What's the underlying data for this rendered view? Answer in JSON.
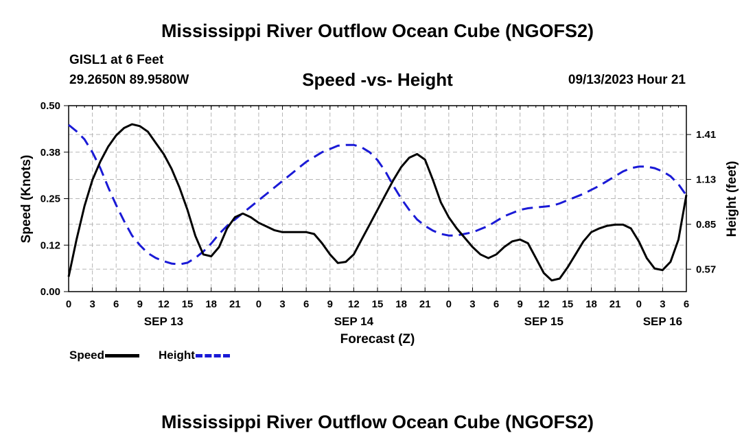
{
  "header": {
    "title": "Mississippi River Outflow Ocean Cube (NGOFS2)",
    "station": "GISL1 at 6 Feet",
    "coordinates": "29.2650N  89.9580W",
    "chart_subtitle": "Speed -vs- Height",
    "datetime": "09/13/2023 Hour 21"
  },
  "footer": {
    "title": "Mississippi River Outflow Ocean Cube (NGOFS2)"
  },
  "legend": {
    "speed_label": "Speed",
    "height_label": "Height",
    "speed_color": "#000000",
    "height_color": "#1a1ad6"
  },
  "chart_data": {
    "type": "line",
    "title": "Speed -vs- Height",
    "xlabel": "Forecast (Z)",
    "ylabel_left": "Speed (Knots)",
    "ylabel_right": "Height (feet)",
    "x_range_hours": [
      0,
      78
    ],
    "x_tick_step_hours": 3,
    "x_tick_labels": [
      "0",
      "3",
      "6",
      "9",
      "12",
      "15",
      "18",
      "21",
      "0",
      "3",
      "6",
      "9",
      "12",
      "15",
      "18",
      "21",
      "0",
      "3",
      "6",
      "9",
      "12",
      "15",
      "18",
      "21",
      "0",
      "3",
      "6"
    ],
    "date_labels": [
      {
        "hour": 12,
        "label": "SEP 13"
      },
      {
        "hour": 36,
        "label": "SEP 14"
      },
      {
        "hour": 60,
        "label": "SEP 15"
      },
      {
        "hour": 75,
        "label": "SEP 16"
      }
    ],
    "y_left": {
      "range": [
        0.0,
        0.5
      ],
      "ticks": [
        0.0,
        0.125,
        0.25,
        0.375,
        0.5
      ],
      "tick_labels": [
        "0.00",
        "0.12",
        "0.25",
        "0.38",
        "0.50"
      ]
    },
    "y_right": {
      "range": [
        0.43,
        1.59
      ],
      "ticks": [
        0.57,
        0.85,
        1.13,
        1.41
      ],
      "tick_labels": [
        "0.57",
        "0.85",
        "1.13",
        "1.41"
      ]
    },
    "grid": true,
    "series": [
      {
        "name": "Speed",
        "axis": "left",
        "style": "solid",
        "color": "#000000",
        "points": [
          [
            0,
            0.04
          ],
          [
            1,
            0.14
          ],
          [
            2,
            0.23
          ],
          [
            3,
            0.3
          ],
          [
            4,
            0.35
          ],
          [
            5,
            0.39
          ],
          [
            6,
            0.42
          ],
          [
            7,
            0.44
          ],
          [
            8,
            0.45
          ],
          [
            9,
            0.445
          ],
          [
            10,
            0.43
          ],
          [
            11,
            0.4
          ],
          [
            12,
            0.37
          ],
          [
            13,
            0.33
          ],
          [
            14,
            0.28
          ],
          [
            15,
            0.22
          ],
          [
            16,
            0.15
          ],
          [
            17,
            0.1
          ],
          [
            18,
            0.095
          ],
          [
            19,
            0.12
          ],
          [
            20,
            0.17
          ],
          [
            21,
            0.2
          ],
          [
            22,
            0.21
          ],
          [
            23,
            0.2
          ],
          [
            24,
            0.185
          ],
          [
            25,
            0.175
          ],
          [
            26,
            0.165
          ],
          [
            27,
            0.16
          ],
          [
            28,
            0.16
          ],
          [
            29,
            0.16
          ],
          [
            30,
            0.16
          ],
          [
            31,
            0.155
          ],
          [
            32,
            0.13
          ],
          [
            33,
            0.1
          ],
          [
            34,
            0.077
          ],
          [
            35,
            0.08
          ],
          [
            36,
            0.1
          ],
          [
            37,
            0.14
          ],
          [
            38,
            0.18
          ],
          [
            39,
            0.22
          ],
          [
            40,
            0.26
          ],
          [
            41,
            0.3
          ],
          [
            42,
            0.335
          ],
          [
            43,
            0.36
          ],
          [
            44,
            0.37
          ],
          [
            45,
            0.355
          ],
          [
            46,
            0.3
          ],
          [
            47,
            0.24
          ],
          [
            48,
            0.2
          ],
          [
            49,
            0.17
          ],
          [
            50,
            0.145
          ],
          [
            51,
            0.12
          ],
          [
            52,
            0.1
          ],
          [
            53,
            0.09
          ],
          [
            54,
            0.1
          ],
          [
            55,
            0.12
          ],
          [
            56,
            0.135
          ],
          [
            57,
            0.14
          ],
          [
            58,
            0.13
          ],
          [
            59,
            0.09
          ],
          [
            60,
            0.05
          ],
          [
            61,
            0.03
          ],
          [
            62,
            0.035
          ],
          [
            63,
            0.065
          ],
          [
            64,
            0.1
          ],
          [
            65,
            0.135
          ],
          [
            66,
            0.16
          ],
          [
            67,
            0.17
          ],
          [
            68,
            0.177
          ],
          [
            69,
            0.18
          ],
          [
            70,
            0.18
          ],
          [
            71,
            0.17
          ],
          [
            72,
            0.135
          ],
          [
            73,
            0.09
          ],
          [
            74,
            0.062
          ],
          [
            75,
            0.058
          ],
          [
            76,
            0.08
          ],
          [
            77,
            0.14
          ],
          [
            78,
            0.26
          ]
        ]
      },
      {
        "name": "Height",
        "axis": "right",
        "style": "dashed",
        "color": "#1a1ad6",
        "points": [
          [
            0,
            1.47
          ],
          [
            1,
            1.43
          ],
          [
            2,
            1.38
          ],
          [
            3,
            1.3
          ],
          [
            4,
            1.2
          ],
          [
            5,
            1.08
          ],
          [
            6,
            0.97
          ],
          [
            7,
            0.87
          ],
          [
            8,
            0.78
          ],
          [
            9,
            0.72
          ],
          [
            10,
            0.67
          ],
          [
            11,
            0.64
          ],
          [
            12,
            0.62
          ],
          [
            13,
            0.605
          ],
          [
            14,
            0.6
          ],
          [
            15,
            0.61
          ],
          [
            16,
            0.64
          ],
          [
            17,
            0.68
          ],
          [
            18,
            0.73
          ],
          [
            19,
            0.79
          ],
          [
            20,
            0.84
          ],
          [
            21,
            0.88
          ],
          [
            22,
            0.92
          ],
          [
            23,
            0.96
          ],
          [
            24,
            1.0
          ],
          [
            25,
            1.04
          ],
          [
            26,
            1.08
          ],
          [
            27,
            1.12
          ],
          [
            28,
            1.16
          ],
          [
            29,
            1.2
          ],
          [
            30,
            1.24
          ],
          [
            31,
            1.27
          ],
          [
            32,
            1.3
          ],
          [
            33,
            1.32
          ],
          [
            34,
            1.34
          ],
          [
            35,
            1.345
          ],
          [
            36,
            1.345
          ],
          [
            37,
            1.33
          ],
          [
            38,
            1.3
          ],
          [
            39,
            1.25
          ],
          [
            40,
            1.18
          ],
          [
            41,
            1.09
          ],
          [
            42,
            1.01
          ],
          [
            43,
            0.94
          ],
          [
            44,
            0.88
          ],
          [
            45,
            0.84
          ],
          [
            46,
            0.81
          ],
          [
            47,
            0.79
          ],
          [
            48,
            0.78
          ],
          [
            49,
            0.78
          ],
          [
            50,
            0.79
          ],
          [
            51,
            0.8
          ],
          [
            52,
            0.82
          ],
          [
            53,
            0.84
          ],
          [
            54,
            0.87
          ],
          [
            55,
            0.9
          ],
          [
            56,
            0.92
          ],
          [
            57,
            0.94
          ],
          [
            58,
            0.95
          ],
          [
            59,
            0.955
          ],
          [
            60,
            0.96
          ],
          [
            61,
            0.965
          ],
          [
            62,
            0.98
          ],
          [
            63,
            1.0
          ],
          [
            64,
            1.02
          ],
          [
            65,
            1.04
          ],
          [
            66,
            1.065
          ],
          [
            67,
            1.09
          ],
          [
            68,
            1.12
          ],
          [
            69,
            1.15
          ],
          [
            70,
            1.18
          ],
          [
            71,
            1.2
          ],
          [
            72,
            1.21
          ],
          [
            73,
            1.21
          ],
          [
            74,
            1.2
          ],
          [
            75,
            1.18
          ],
          [
            76,
            1.15
          ],
          [
            77,
            1.1
          ],
          [
            78,
            1.03
          ]
        ]
      }
    ]
  }
}
